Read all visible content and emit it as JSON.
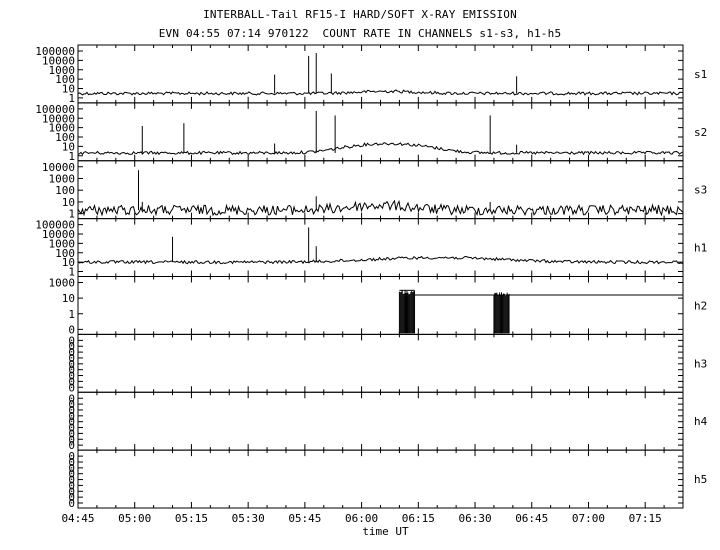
{
  "header": {
    "title": "INTERBALL-Tail RF15-I HARD/SOFT X-RAY EMISSION",
    "subtitle": "EVN 04:55 07:14 970122  COUNT RATE IN CHANNELS s1-s3, h1-h5"
  },
  "chart_data": {
    "type": "line",
    "title": "INTERBALL-Tail RF15-I HARD/SOFT X-RAY EMISSION",
    "subtitle": "EVN 04:55 07:14 970122  COUNT RATE IN CHANNELS s1-s3, h1-h5",
    "xlabel": "time UT",
    "x_ticks": [
      "04:45",
      "05:00",
      "05:15",
      "05:30",
      "05:45",
      "06:00",
      "06:15",
      "06:30",
      "06:45",
      "07:00",
      "07:15"
    ],
    "xlim": [
      "04:45",
      "07:25"
    ],
    "y_scale": "log",
    "grid": false,
    "panels": [
      {
        "name": "s1",
        "y_ticks": [
          "100000",
          "10000",
          "1000",
          "100",
          "10",
          "1"
        ],
        "baseline": 3,
        "bump": {
          "center": "06:07",
          "width_min": 20,
          "peak": 5
        },
        "spikes": [
          {
            "time": "05:37",
            "value": 300
          },
          {
            "time": "05:46",
            "value": 30000
          },
          {
            "time": "05:48",
            "value": 60000
          },
          {
            "time": "05:52",
            "value": 400
          },
          {
            "time": "06:41",
            "value": 200
          }
        ]
      },
      {
        "name": "s2",
        "y_ticks": [
          "100000",
          "10000",
          "1000",
          "100",
          "10",
          "1"
        ],
        "baseline": 2,
        "bump": {
          "center": "06:07",
          "width_min": 22,
          "peak": 20
        },
        "spikes": [
          {
            "time": "05:02",
            "value": 1500
          },
          {
            "time": "05:13",
            "value": 3000
          },
          {
            "time": "05:37",
            "value": 20
          },
          {
            "time": "05:48",
            "value": 60000
          },
          {
            "time": "05:53",
            "value": 20000
          },
          {
            "time": "06:34",
            "value": 20000
          },
          {
            "time": "06:41",
            "value": 15
          }
        ]
      },
      {
        "name": "s3",
        "y_ticks": [
          "10000",
          "1000",
          "100",
          "10",
          "1"
        ],
        "baseline": 2,
        "bump": {
          "center": "06:05",
          "width_min": 20,
          "peak": 5
        },
        "spikes": [
          {
            "time": "05:01",
            "value": 5000
          },
          {
            "time": "05:02",
            "value": 10
          },
          {
            "time": "05:48",
            "value": 30
          },
          {
            "time": "06:34",
            "value": 10
          }
        ]
      },
      {
        "name": "h1",
        "y_ticks": [
          "100000",
          "10000",
          "1000",
          "100",
          "10",
          "1"
        ],
        "baseline": 10,
        "bump": {
          "center": "06:20",
          "width_min": 40,
          "peak": 30
        },
        "spikes": [
          {
            "time": "05:10",
            "value": 5000
          },
          {
            "time": "05:46",
            "value": 50000
          },
          {
            "time": "05:48",
            "value": 500
          }
        ]
      },
      {
        "name": "h2",
        "y_ticks": [
          "1000",
          "10",
          "1",
          "0"
        ],
        "steps": [
          {
            "start": "06:10",
            "end": "06:14",
            "value": 100
          },
          {
            "start": "06:14",
            "end": "07:25",
            "value": 25
          }
        ],
        "bursts": [
          {
            "start": "06:10",
            "end": "06:14",
            "peak": 100
          },
          {
            "start": "06:35",
            "end": "06:39",
            "peak": 60
          }
        ]
      },
      {
        "name": "h3",
        "y_ticks": [
          "0",
          "0",
          "0",
          "0",
          "0",
          "0",
          "0",
          "0",
          "0"
        ]
      },
      {
        "name": "h4",
        "y_ticks": [
          "0",
          "0",
          "0",
          "0",
          "0",
          "0",
          "0",
          "0",
          "0"
        ]
      },
      {
        "name": "h5",
        "y_ticks": [
          "0",
          "0",
          "0",
          "0",
          "0",
          "0",
          "0",
          "0",
          "0"
        ]
      }
    ]
  }
}
